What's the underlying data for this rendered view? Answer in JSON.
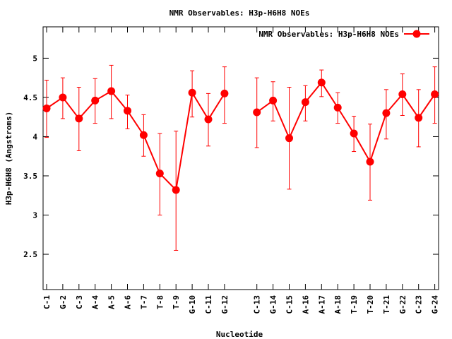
{
  "chart_data": {
    "type": "line",
    "title": "NMR Observables: H3p-H6H8 NOEs",
    "xlabel": "Nucleotide",
    "ylabel": "H3p-H6H8 (Angstroms)",
    "ylim": [
      2.05,
      5.4
    ],
    "yticks": [
      "2.5",
      "3",
      "3.5",
      "4",
      "4.5",
      "5"
    ],
    "legend_position": "top-right",
    "grid": false,
    "series": [
      {
        "name": "NMR Observables: H3p-H6H8 NOEs",
        "color": "#ff0000",
        "marker": "circle",
        "points": [
          {
            "x": "C-1",
            "y": 4.36,
            "lo": 3.99,
            "hi": 4.72
          },
          {
            "x": "G-2",
            "y": 4.5,
            "lo": 4.23,
            "hi": 4.75
          },
          {
            "x": "C-3",
            "y": 4.23,
            "lo": 3.82,
            "hi": 4.63
          },
          {
            "x": "A-4",
            "y": 4.46,
            "lo": 4.17,
            "hi": 4.74
          },
          {
            "x": "A-5",
            "y": 4.58,
            "lo": 4.23,
            "hi": 4.91
          },
          {
            "x": "A-6",
            "y": 4.33,
            "lo": 4.1,
            "hi": 4.53
          },
          {
            "x": "T-7",
            "y": 4.02,
            "lo": 3.75,
            "hi": 4.28
          },
          {
            "x": "T-8",
            "y": 3.53,
            "lo": 3.0,
            "hi": 4.04
          },
          {
            "x": "T-9",
            "y": 3.32,
            "lo": 2.55,
            "hi": 4.07
          },
          {
            "x": "G-10",
            "y": 4.56,
            "lo": 4.25,
            "hi": 4.84
          },
          {
            "x": "C-11",
            "y": 4.22,
            "lo": 3.88,
            "hi": 4.55
          },
          {
            "x": "G-12",
            "y": 4.55,
            "lo": 4.17,
            "hi": 4.89
          },
          {
            "x": "C-13",
            "y": 4.31,
            "lo": 3.86,
            "hi": 4.75
          },
          {
            "x": "G-14",
            "y": 4.46,
            "lo": 4.2,
            "hi": 4.7
          },
          {
            "x": "C-15",
            "y": 3.98,
            "lo": 3.33,
            "hi": 4.63
          },
          {
            "x": "A-16",
            "y": 4.44,
            "lo": 4.2,
            "hi": 4.65
          },
          {
            "x": "A-17",
            "y": 4.69,
            "lo": 4.51,
            "hi": 4.85
          },
          {
            "x": "A-18",
            "y": 4.37,
            "lo": 4.17,
            "hi": 4.56
          },
          {
            "x": "T-19",
            "y": 4.04,
            "lo": 3.81,
            "hi": 4.26
          },
          {
            "x": "T-20",
            "y": 3.68,
            "lo": 3.19,
            "hi": 4.16
          },
          {
            "x": "T-21",
            "y": 4.3,
            "lo": 3.97,
            "hi": 4.6
          },
          {
            "x": "G-22",
            "y": 4.54,
            "lo": 4.27,
            "hi": 4.8
          },
          {
            "x": "C-23",
            "y": 4.24,
            "lo": 3.87,
            "hi": 4.6
          },
          {
            "x": "G-24",
            "y": 4.54,
            "lo": 4.17,
            "hi": 4.89
          }
        ]
      }
    ]
  }
}
